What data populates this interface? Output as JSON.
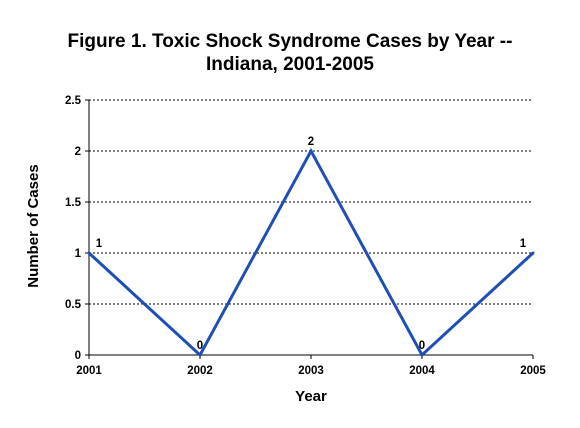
{
  "chart_data": {
    "type": "line",
    "title_lines": [
      "Figure 1.  Toxic Shock Syndrome Cases by Year --",
      "Indiana, 2001-2005"
    ],
    "xlabel": "Year",
    "ylabel": "Number of Cases",
    "categories": [
      "2001",
      "2002",
      "2003",
      "2004",
      "2005"
    ],
    "values": [
      1,
      0,
      2,
      0,
      1
    ],
    "data_labels": [
      "1",
      "0",
      "2",
      "0",
      "1"
    ],
    "ylim": [
      0,
      2.5
    ],
    "yticks": [
      0,
      0.5,
      1,
      1.5,
      2,
      2.5
    ],
    "ytick_labels": [
      "0",
      "0.5",
      "1",
      "1.5",
      "2",
      "2.5"
    ],
    "grid": "horizontal dotted",
    "legend": "none",
    "line_color": "#1f4fb4"
  }
}
